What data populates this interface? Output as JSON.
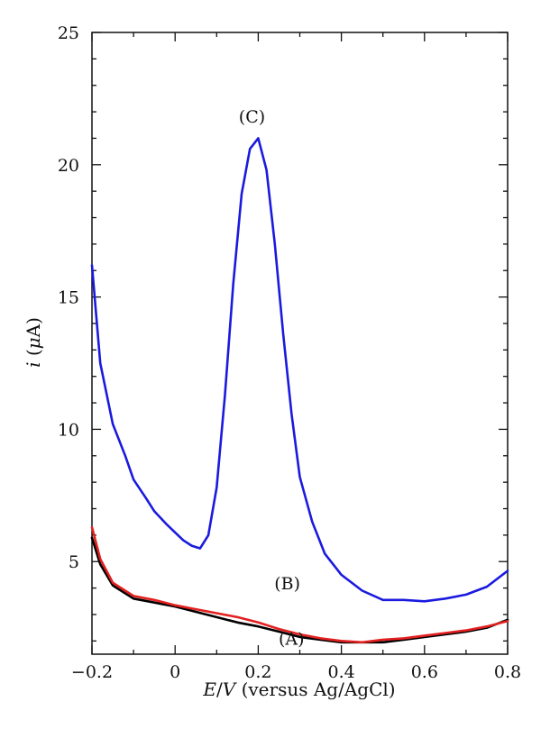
{
  "chart_data": {
    "type": "line",
    "title": "",
    "xlabel": {
      "var": "E",
      "sep": "/",
      "unit": "V",
      "rest": " (versus Ag/AgCl)"
    },
    "ylabel": {
      "var": "i",
      "open": " (",
      "mu": "μ",
      "unit": "A",
      "close": ")"
    },
    "xlim": [
      -0.2,
      0.8
    ],
    "ylim": [
      1.5,
      25
    ],
    "xticks": [
      -0.2,
      0,
      0.2,
      0.4,
      0.6,
      0.8
    ],
    "xtick_labels": [
      "−0.2",
      "0",
      "0.2",
      "0.4",
      "0.6",
      "0.8"
    ],
    "yticks": [
      5,
      10,
      15,
      20,
      25
    ],
    "ytick_labels": [
      "5",
      "10",
      "15",
      "20",
      "25"
    ],
    "grid": false,
    "series": [
      {
        "name": "(A)",
        "color": "#000000",
        "x": [
          -0.2,
          -0.18,
          -0.15,
          -0.1,
          -0.05,
          0.0,
          0.05,
          0.1,
          0.15,
          0.2,
          0.25,
          0.3,
          0.35,
          0.4,
          0.45,
          0.5,
          0.55,
          0.6,
          0.65,
          0.7,
          0.75,
          0.8
        ],
        "y": [
          5.9,
          4.9,
          4.1,
          3.6,
          3.45,
          3.3,
          3.1,
          2.9,
          2.7,
          2.55,
          2.35,
          2.15,
          2.05,
          1.95,
          1.95,
          1.95,
          2.05,
          2.15,
          2.25,
          2.35,
          2.5,
          2.8
        ]
      },
      {
        "name": "(B)",
        "color": "#e32020",
        "x": [
          -0.2,
          -0.18,
          -0.15,
          -0.1,
          -0.05,
          0.0,
          0.05,
          0.1,
          0.15,
          0.2,
          0.25,
          0.3,
          0.35,
          0.4,
          0.45,
          0.5,
          0.55,
          0.6,
          0.65,
          0.7,
          0.75,
          0.8
        ],
        "y": [
          6.3,
          5.1,
          4.2,
          3.7,
          3.55,
          3.35,
          3.2,
          3.05,
          2.9,
          2.7,
          2.45,
          2.25,
          2.1,
          2.0,
          1.95,
          2.05,
          2.1,
          2.2,
          2.3,
          2.4,
          2.55,
          2.75
        ]
      },
      {
        "name": "(C)",
        "color": "#1a1adf",
        "x": [
          -0.2,
          -0.18,
          -0.15,
          -0.12,
          -0.1,
          -0.07,
          -0.05,
          -0.02,
          0.0,
          0.02,
          0.04,
          0.06,
          0.08,
          0.1,
          0.12,
          0.14,
          0.16,
          0.18,
          0.2,
          0.22,
          0.24,
          0.26,
          0.28,
          0.3,
          0.33,
          0.36,
          0.4,
          0.45,
          0.5,
          0.55,
          0.6,
          0.65,
          0.7,
          0.75,
          0.8
        ],
        "y": [
          16.2,
          12.5,
          10.2,
          9.0,
          8.1,
          7.4,
          6.9,
          6.4,
          6.1,
          5.8,
          5.6,
          5.5,
          6.0,
          7.8,
          11.3,
          15.5,
          18.9,
          20.6,
          21.0,
          19.8,
          17.0,
          13.6,
          10.6,
          8.2,
          6.5,
          5.3,
          4.5,
          3.9,
          3.55,
          3.55,
          3.5,
          3.6,
          3.75,
          4.05,
          4.65
        ]
      }
    ],
    "annotations": [
      {
        "text": "(A)",
        "x": 0.28,
        "y": 1.85
      },
      {
        "text": "(B)",
        "x": 0.27,
        "y": 3.95
      },
      {
        "text": "(C)",
        "x": 0.185,
        "y": 21.6
      }
    ]
  }
}
